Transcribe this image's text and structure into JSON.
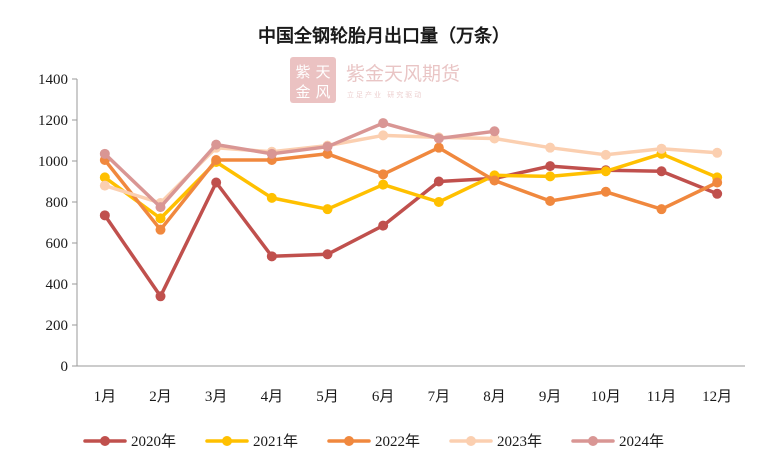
{
  "chart_data": {
    "type": "line",
    "title": "中国全钢轮胎月出口量（万条）",
    "xlabel": "",
    "ylabel": "",
    "categories": [
      "1月",
      "2月",
      "3月",
      "4月",
      "5月",
      "6月",
      "7月",
      "8月",
      "9月",
      "10月",
      "11月",
      "12月"
    ],
    "ylim": [
      0,
      1400
    ],
    "yticks": [
      0,
      200,
      400,
      600,
      800,
      1000,
      1200,
      1400
    ],
    "grid": false,
    "legend_position": "bottom",
    "series": [
      {
        "name": "2020年",
        "color": "#c0504d",
        "values": [
          735,
          340,
          895,
          535,
          545,
          685,
          900,
          915,
          975,
          955,
          950,
          840
        ]
      },
      {
        "name": "2021年",
        "color": "#ffc000",
        "values": [
          920,
          720,
          995,
          820,
          765,
          885,
          800,
          930,
          925,
          950,
          1035,
          920
        ]
      },
      {
        "name": "2022年",
        "color": "#f0883e",
        "values": [
          1005,
          665,
          1005,
          1005,
          1035,
          935,
          1065,
          905,
          805,
          850,
          765,
          895
        ]
      },
      {
        "name": "2023年",
        "color": "#fbcfb0",
        "values": [
          880,
          795,
          1065,
          1045,
          1075,
          1125,
          1115,
          1110,
          1065,
          1030,
          1060,
          1040
        ]
      },
      {
        "name": "2024年",
        "color": "#d99694",
        "values": [
          1035,
          775,
          1080,
          1035,
          1070,
          1185,
          1110,
          1145,
          null,
          null,
          null,
          null
        ]
      }
    ]
  },
  "watermark": {
    "seal": [
      "紫",
      "天",
      "金",
      "风"
    ],
    "name": "紫金天风期货",
    "slogan": "立足产业 研究驱动"
  }
}
